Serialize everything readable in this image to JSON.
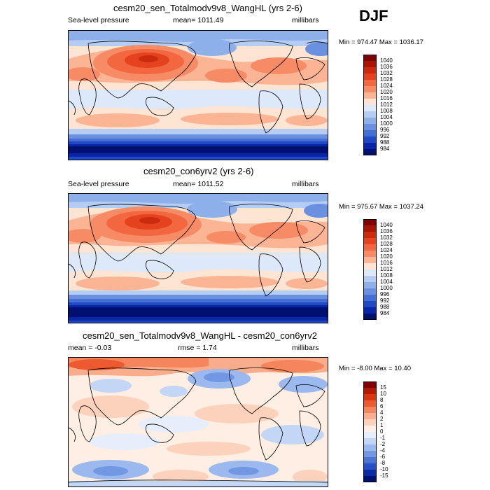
{
  "season": "DJF",
  "panels": [
    {
      "title": "cesm20_sen_Totalmodv9v8_WangHL (yrs 2-6)",
      "variable": "Sea-level pressure",
      "mean": "mean= 1011.49",
      "units": "millibars",
      "minmax": "Min = 974.47 Max = 1036.17",
      "colorbar": {
        "labels": [
          "1040",
          "1036",
          "1032",
          "1028",
          "1024",
          "1020",
          "1016",
          "1012",
          "1008",
          "1004",
          "1000",
          "996",
          "992",
          "988",
          "984"
        ],
        "colors": [
          "#7f0000",
          "#a81600",
          "#cc2a0d",
          "#e5431f",
          "#f26640",
          "#f78b66",
          "#fbb595",
          "#fde4d3",
          "#dde9fb",
          "#b6cdf3",
          "#8eb0ea",
          "#6b90e0",
          "#446fd4",
          "#2148c5",
          "#0a26a8",
          "#001070"
        ]
      }
    },
    {
      "title": "cesm20_con6yrv2 (yrs 2-6)",
      "variable": "Sea-level pressure",
      "mean": "mean= 1011.52",
      "units": "millibars",
      "minmax": "Min = 975.67 Max = 1037.24",
      "colorbar": {
        "labels": [
          "1040",
          "1036",
          "1032",
          "1028",
          "1024",
          "1020",
          "1016",
          "1012",
          "1008",
          "1004",
          "1000",
          "996",
          "992",
          "988",
          "984"
        ],
        "colors": [
          "#7f0000",
          "#a81600",
          "#cc2a0d",
          "#e5431f",
          "#f26640",
          "#f78b66",
          "#fbb595",
          "#fde4d3",
          "#dde9fb",
          "#b6cdf3",
          "#8eb0ea",
          "#6b90e0",
          "#446fd4",
          "#2148c5",
          "#0a26a8",
          "#001070"
        ]
      }
    },
    {
      "title": "cesm20_sen_Totalmodv9v8_WangHL - cesm20_con6yrv2",
      "mean": "mean =  -0.03",
      "rmse": "rmse =    1.74",
      "units": "millibars",
      "minmax": "Min =  -8.00 Max =  10.40",
      "colorbar": {
        "labels": [
          "15",
          "10",
          "8",
          "6",
          "4",
          "2",
          "1",
          "0",
          "-1",
          "-2",
          "-4",
          "-6",
          "-8",
          "-10",
          "-15"
        ],
        "colors": [
          "#7f0000",
          "#b31a00",
          "#d9330f",
          "#ee5a30",
          "#f5855c",
          "#f9ad8c",
          "#fcd2bc",
          "#feeee3",
          "#e6eefb",
          "#c3d6f6",
          "#9bb9ee",
          "#7398e3",
          "#4c75d6",
          "#2550c6",
          "#0a2aa8",
          "#001070"
        ]
      }
    }
  ]
}
